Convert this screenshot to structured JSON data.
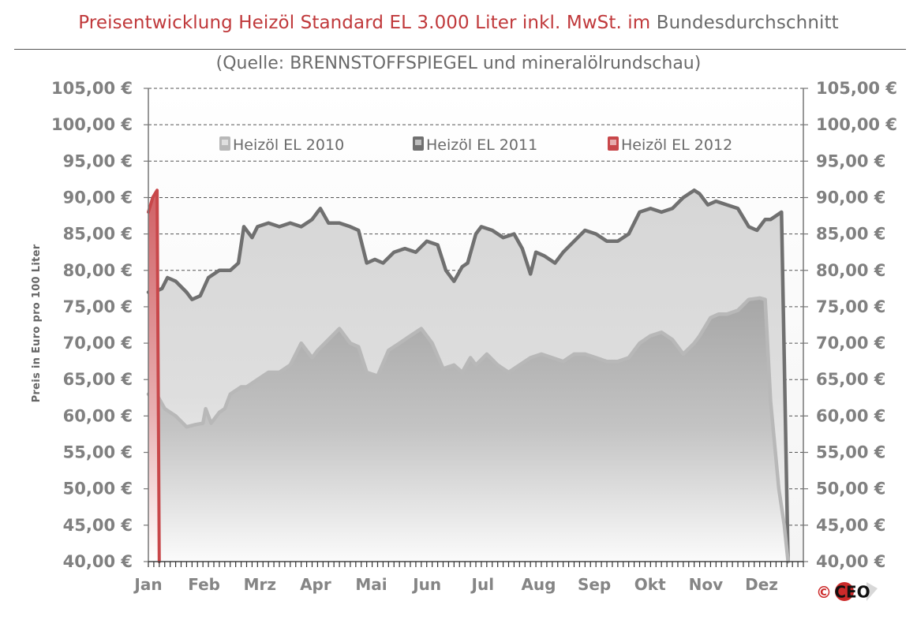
{
  "header": {
    "title_red": "Preisentwicklung Heizöl Standard EL 3.000 Liter inkl. MwSt. im",
    "title_gray": "Bundesdurchschnitt",
    "subtitle": "(Quelle: BRENNSTOFFSPIEGEL  und mineralölrundschau)"
  },
  "chart_data": {
    "type": "area",
    "title": "Preisentwicklung Heizöl Standard EL 3.000 Liter inkl. MwSt. im Bundesdurchschnitt",
    "subtitle": "(Quelle: BRENNSTOFFSPIEGEL  und mineralölrundschau)",
    "ylabel": "Preis in Euro pro 100 Liter",
    "ylim": [
      40,
      105
    ],
    "y_ticks": [
      "40,00 €",
      "45,00 €",
      "50,00 €",
      "55,00 €",
      "60,00 €",
      "65,00 €",
      "70,00 €",
      "75,00 €",
      "80,00 €",
      "85,00 €",
      "90,00 €",
      "95,00 €",
      "100,00 €",
      "105,00 €"
    ],
    "categories": [
      "Jan",
      "Feb",
      "Mrz",
      "Apr",
      "Mai",
      "Jun",
      "Jul",
      "Aug",
      "Sep",
      "Okt",
      "Nov",
      "Dez"
    ],
    "grid": "dashed horizontal",
    "legend_position": "top",
    "series": [
      {
        "name": "Heizöl EL 2010",
        "color": "#b8b8b8",
        "x": [
          0,
          0.05,
          0.15,
          0.3,
          0.5,
          0.7,
          0.85,
          1.0,
          1.05,
          1.15,
          1.3,
          1.4,
          1.5,
          1.7,
          1.8,
          2.0,
          2.2,
          2.4,
          2.6,
          2.8,
          3.0,
          3.1,
          3.3,
          3.5,
          3.7,
          3.85,
          4.0,
          4.2,
          4.4,
          4.6,
          4.8,
          5.0,
          5.2,
          5.4,
          5.6,
          5.75,
          5.9,
          6.0,
          6.2,
          6.4,
          6.6,
          6.8,
          7.0,
          7.2,
          7.4,
          7.6,
          7.8,
          8.0,
          8.2,
          8.4,
          8.6,
          8.8,
          9.0,
          9.2,
          9.4,
          9.6,
          9.8,
          10.0,
          10.1,
          10.3,
          10.45,
          10.6,
          10.8,
          11.0,
          11.2,
          11.3,
          11.4,
          11.55,
          11.65,
          11.72
        ],
        "values": [
          63.0,
          62.5,
          63.0,
          61.0,
          60.0,
          58.5,
          58.8,
          59.0,
          61.0,
          59.0,
          60.5,
          61.0,
          63.0,
          64.0,
          64.0,
          65.0,
          66.0,
          66.0,
          67.0,
          70.0,
          68.0,
          69.0,
          70.5,
          72.0,
          70.0,
          69.5,
          66.0,
          65.5,
          69.0,
          70.0,
          71.0,
          72.0,
          70.0,
          66.5,
          67.0,
          66.0,
          68.0,
          67.0,
          68.5,
          67.0,
          66.0,
          67.0,
          68.0,
          68.5,
          68.0,
          67.5,
          68.5,
          68.5,
          68.0,
          67.5,
          67.5,
          68.0,
          70.0,
          71.0,
          71.5,
          70.5,
          68.5,
          70.0,
          71.0,
          73.5,
          74.0,
          74.0,
          74.5,
          76.0,
          76.2,
          76.0,
          62.0,
          50.0,
          45.0,
          40.0
        ]
      },
      {
        "name": "Heizöl EL 2011",
        "color": "#707070",
        "x": [
          0,
          0.1,
          0.25,
          0.35,
          0.5,
          0.7,
          0.8,
          0.95,
          1.1,
          1.3,
          1.5,
          1.65,
          1.75,
          1.9,
          2.0,
          2.2,
          2.4,
          2.6,
          2.8,
          3.0,
          3.1,
          3.15,
          3.3,
          3.5,
          3.7,
          3.85,
          4.0,
          4.15,
          4.3,
          4.5,
          4.7,
          4.9,
          5.1,
          5.3,
          5.45,
          5.6,
          5.75,
          5.85,
          6.0,
          6.1,
          6.3,
          6.5,
          6.7,
          6.85,
          7.0,
          7.1,
          7.25,
          7.45,
          7.6,
          7.8,
          8.0,
          8.2,
          8.4,
          8.6,
          8.8,
          9.0,
          9.2,
          9.4,
          9.6,
          9.8,
          10.0,
          10.1,
          10.25,
          10.4,
          10.6,
          10.8,
          11.0,
          11.15,
          11.3,
          11.4,
          11.6,
          11.72
        ],
        "values": [
          77.0,
          77.0,
          77.5,
          79.0,
          78.5,
          77.0,
          76.0,
          76.5,
          79.0,
          80.0,
          80.0,
          81.0,
          86.0,
          84.5,
          86.0,
          86.5,
          86.0,
          86.5,
          86.0,
          87.0,
          88.0,
          88.5,
          86.5,
          86.5,
          86.0,
          85.5,
          81.0,
          81.5,
          81.0,
          82.5,
          83.0,
          82.5,
          84.0,
          83.5,
          80.0,
          78.5,
          80.5,
          81.0,
          85.0,
          86.0,
          85.5,
          84.5,
          85.0,
          83.0,
          79.5,
          82.5,
          82.0,
          81.0,
          82.5,
          84.0,
          85.5,
          85.0,
          84.0,
          84.0,
          85.0,
          88.0,
          88.5,
          88.0,
          88.5,
          90.0,
          91.0,
          90.5,
          89.0,
          89.5,
          89.0,
          88.5,
          86.0,
          85.5,
          87.0,
          87.0,
          88.0,
          40.0
        ]
      },
      {
        "name": "Heizöl EL 2012",
        "color": "#c8474a",
        "x": [
          0,
          0.04,
          0.08,
          0.12,
          0.16,
          0.2
        ],
        "values": [
          88.0,
          89.0,
          90.0,
          90.5,
          91.0,
          40.0
        ]
      }
    ]
  },
  "logo": {
    "copyright": "©",
    "text": "CEO"
  }
}
